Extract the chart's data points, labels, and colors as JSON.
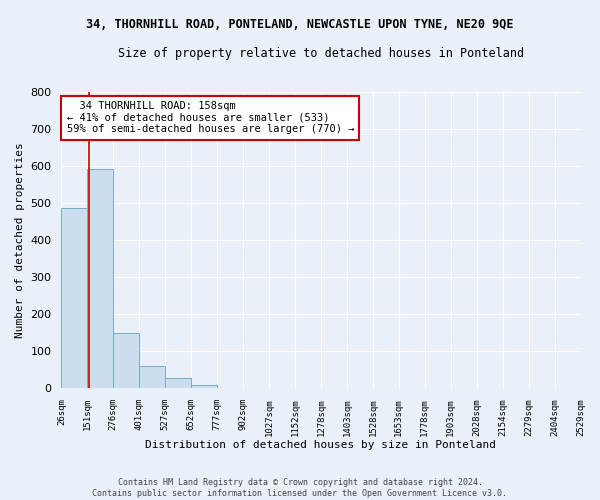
{
  "title": "34, THORNHILL ROAD, PONTELAND, NEWCASTLE UPON TYNE, NE20 9QE",
  "subtitle": "Size of property relative to detached houses in Ponteland",
  "xlabel": "Distribution of detached houses by size in Ponteland",
  "ylabel": "Number of detached properties",
  "bin_edges": [
    26,
    151,
    276,
    401,
    527,
    652,
    777,
    902,
    1027,
    1152,
    1278,
    1403,
    1528,
    1653,
    1778,
    1903,
    2028,
    2154,
    2279,
    2404,
    2529
  ],
  "bar_heights": [
    487,
    592,
    150,
    62,
    28,
    10,
    0,
    0,
    0,
    0,
    0,
    0,
    0,
    0,
    0,
    0,
    0,
    0,
    0,
    0
  ],
  "bar_color": "#ccdded",
  "bar_edge_color": "#7aaac8",
  "property_size": 158,
  "red_line_color": "#cc0000",
  "ylim": [
    0,
    800
  ],
  "annotation_text": "  34 THORNHILL ROAD: 158sqm  \n← 41% of detached houses are smaller (533)\n59% of semi-detached houses are larger (770) →",
  "annotation_box_color": "#ffffff",
  "annotation_box_edge": "#cc0000",
  "background_color": "#eaf0f8",
  "grid_color": "#ffffff",
  "footer_line1": "Contains HM Land Registry data © Crown copyright and database right 2024.",
  "footer_line2": "Contains public sector information licensed under the Open Government Licence v3.0."
}
